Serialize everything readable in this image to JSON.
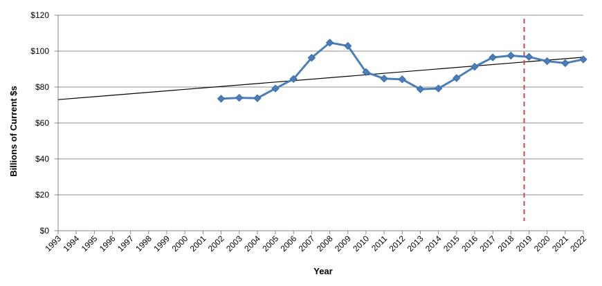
{
  "chart_data": {
    "type": "line",
    "title": "",
    "xlabel": "Year",
    "ylabel": "Billions of Current $s",
    "x_categories": [
      "1993",
      "1994",
      "1995",
      "1996",
      "1997",
      "1998",
      "1999",
      "2000",
      "2001",
      "2002",
      "2003",
      "2004",
      "2005",
      "2006",
      "2007",
      "2008",
      "2009",
      "2010",
      "2011",
      "2012",
      "2013",
      "2014",
      "2015",
      "2016",
      "2017",
      "2018",
      "2019",
      "2020",
      "2021",
      "2022"
    ],
    "ylim": [
      0,
      120
    ],
    "y_ticks": [
      0,
      20,
      40,
      60,
      80,
      100,
      120
    ],
    "y_tick_labels": [
      "$0",
      "$20",
      "$40",
      "$60",
      "$80",
      "$100",
      "$120"
    ],
    "grid": "horizontal",
    "series": [
      {
        "values": [
          {
            "x": "2002",
            "y": 73.5
          },
          {
            "x": "2003",
            "y": 74.0
          },
          {
            "x": "2004",
            "y": 73.8
          },
          {
            "x": "2005",
            "y": 79.2
          },
          {
            "x": "2006",
            "y": 84.5
          },
          {
            "x": "2007",
            "y": 96.3
          },
          {
            "x": "2008",
            "y": 104.7
          },
          {
            "x": "2009",
            "y": 102.9
          },
          {
            "x": "2010",
            "y": 88.3
          },
          {
            "x": "2011",
            "y": 84.7
          },
          {
            "x": "2012",
            "y": 84.3
          },
          {
            "x": "2013",
            "y": 78.8
          },
          {
            "x": "2014",
            "y": 79.2
          },
          {
            "x": "2015",
            "y": 85.0
          },
          {
            "x": "2016",
            "y": 91.3
          },
          {
            "x": "2017",
            "y": 96.5
          },
          {
            "x": "2018",
            "y": 97.5
          },
          {
            "x": "2019",
            "y": 96.8
          },
          {
            "x": "2020",
            "y": 94.4
          },
          {
            "x": "2021",
            "y": 93.3
          },
          {
            "x": "2022",
            "y": 95.4
          }
        ],
        "color": "#4a7ebb"
      }
    ],
    "trendline": {
      "start": {
        "x": "1993",
        "y": 73.0
      },
      "end": {
        "x": "2022",
        "y": 96.6
      },
      "color": "#000000"
    },
    "vertical_marker": {
      "x": "2019",
      "color": "#c0504d",
      "style": "dashed"
    }
  }
}
